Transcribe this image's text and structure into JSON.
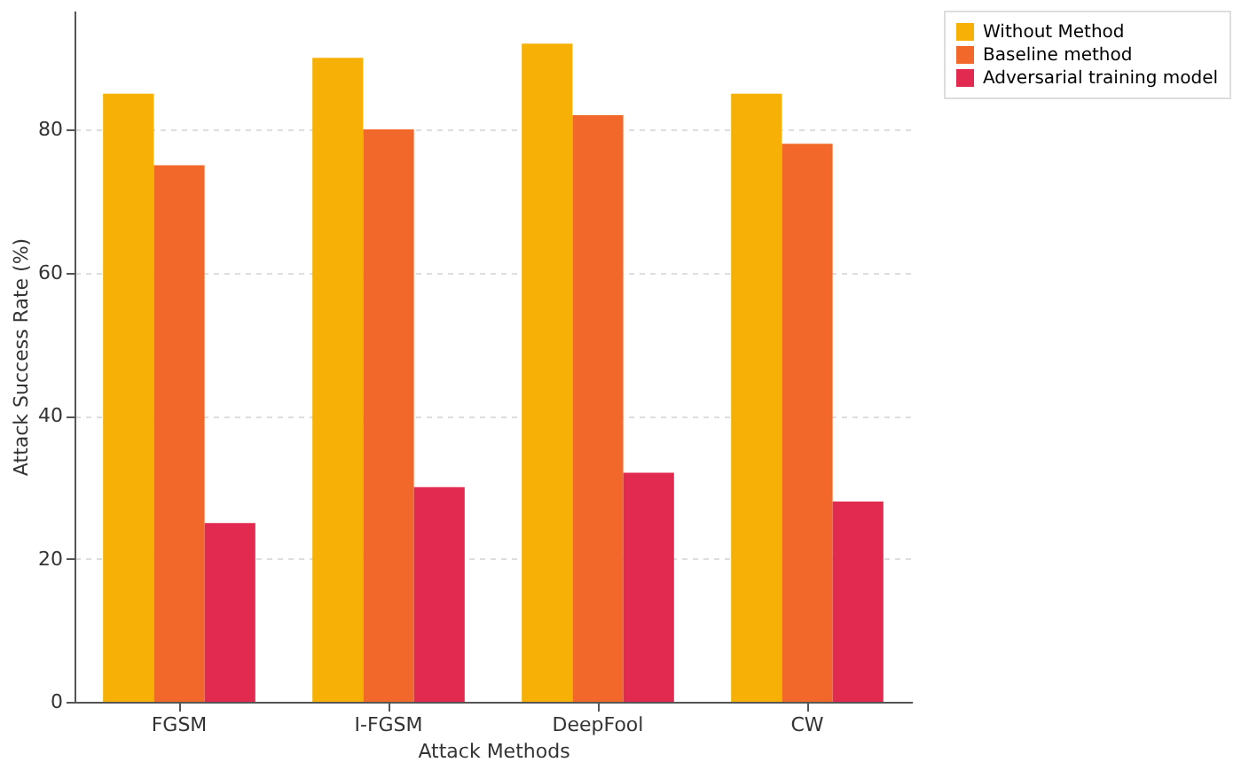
{
  "chart_data": {
    "type": "bar",
    "xlabel": "Attack Methods",
    "ylabel": "Attack Success Rate (%)",
    "categories": [
      "FGSM",
      "I-FGSM",
      "DeepFool",
      "CW"
    ],
    "series": [
      {
        "name": "Without Method",
        "color": "#f7b005",
        "values": [
          85,
          90,
          92,
          85
        ]
      },
      {
        "name": "Baseline method",
        "color": "#f2682a",
        "values": [
          75,
          80,
          82,
          78
        ]
      },
      {
        "name": "Adversarial training model",
        "color": "#e2294f",
        "values": [
          25,
          30,
          32,
          28
        ]
      }
    ],
    "ylim": [
      0,
      96.6
    ],
    "yticks": [
      0,
      20,
      40,
      60,
      80
    ],
    "grid": "y",
    "legend": "top right"
  }
}
